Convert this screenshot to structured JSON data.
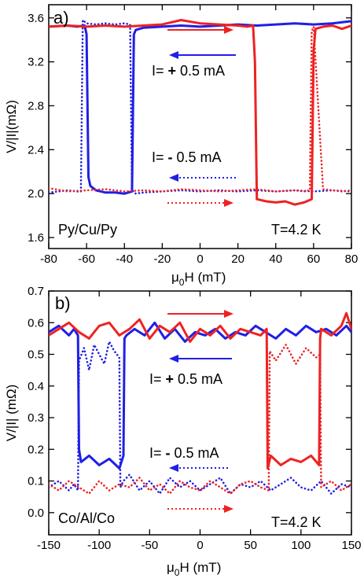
{
  "colors": {
    "blue": "#1f1fe6",
    "red": "#ee2222"
  },
  "chart_data": [
    {
      "type": "line",
      "panel_label": "a)",
      "sample": "Py/Cu/Py",
      "temperature": "T=4.2 K",
      "xlabel_main": "μ",
      "xlabel_sub": "0",
      "xlabel_rest": "H (mT)",
      "ylabel": "V/|I|(mΩ)",
      "xlim": [
        -80,
        80
      ],
      "ylim": [
        1.5,
        3.72
      ],
      "xticks": [
        -80,
        -60,
        -40,
        -20,
        0,
        20,
        40,
        60,
        80
      ],
      "xtick_labels": [
        "-80",
        "-60",
        "-40",
        "-20",
        "0",
        "20",
        "40",
        "60",
        "80"
      ],
      "yticks": [
        1.6,
        2.0,
        2.4,
        2.8,
        3.2,
        3.6
      ],
      "ytick_labels": [
        "1.6",
        "2.0",
        "2.4",
        "2.8",
        "3.2",
        "3.6"
      ],
      "annotation_pos": {
        "prefix": "I= ",
        "sign": "+",
        "rest": " 0.5 mA"
      },
      "annotation_neg": {
        "prefix": "I= ",
        "sign": "-",
        "rest": " 0.5 mA"
      },
      "series": [
        {
          "color": "blue",
          "style": "solid",
          "x": [
            -80,
            -70,
            -65,
            -61,
            -60,
            -59,
            -58,
            -55,
            -50,
            -45,
            -40,
            -36,
            -35,
            -34,
            -30,
            -20,
            -10,
            0,
            10,
            20,
            30,
            40,
            50,
            60,
            70,
            80
          ],
          "y": [
            3.52,
            3.53,
            3.52,
            3.53,
            3.45,
            2.15,
            2.07,
            2.03,
            2.01,
            2.01,
            2.0,
            2.02,
            3.45,
            3.49,
            3.51,
            3.52,
            3.53,
            3.52,
            3.53,
            3.54,
            3.53,
            3.54,
            3.55,
            3.54,
            3.55,
            3.57
          ]
        },
        {
          "color": "blue",
          "style": "dotted",
          "x": [
            -80,
            -70,
            -65,
            -63,
            -62,
            -60,
            -55,
            -50,
            -45,
            -40,
            -37,
            -36,
            -34,
            -30,
            -20,
            -10,
            0,
            10,
            20,
            30,
            40,
            50,
            60,
            70,
            80
          ],
          "y": [
            2.01,
            2.03,
            2.02,
            2.02,
            3.58,
            3.55,
            3.54,
            3.55,
            3.54,
            3.55,
            3.54,
            2.03,
            2.0,
            2.01,
            2.02,
            2.03,
            2.02,
            2.03,
            2.02,
            2.03,
            2.02,
            2.03,
            2.02,
            2.03,
            2.02
          ]
        },
        {
          "color": "red",
          "style": "solid",
          "x": [
            -80,
            -70,
            -60,
            -50,
            -40,
            -30,
            -20,
            -10,
            0,
            10,
            20,
            25,
            28,
            29,
            30,
            35,
            40,
            45,
            50,
            55,
            59,
            60,
            61,
            65,
            70,
            75,
            80
          ],
          "y": [
            3.52,
            3.53,
            3.52,
            3.53,
            3.52,
            3.53,
            3.54,
            3.58,
            3.55,
            3.54,
            3.53,
            3.52,
            3.53,
            3.2,
            1.95,
            1.93,
            1.92,
            1.93,
            1.9,
            1.92,
            1.95,
            3.3,
            3.5,
            3.52,
            3.53,
            3.5,
            3.53
          ]
        },
        {
          "color": "red",
          "style": "dotted",
          "x": [
            -80,
            -70,
            -60,
            -50,
            -40,
            -30,
            -20,
            -10,
            0,
            10,
            20,
            30,
            40,
            50,
            55,
            58,
            59,
            60,
            65,
            70,
            75,
            80
          ],
          "y": [
            2.05,
            2.02,
            2.03,
            2.04,
            2.02,
            2.03,
            2.02,
            2.04,
            2.03,
            2.02,
            2.03,
            2.04,
            2.02,
            2.03,
            2.02,
            2.03,
            3.48,
            3.52,
            2.04,
            2.03,
            2.02,
            2.03
          ]
        }
      ]
    },
    {
      "type": "line",
      "panel_label": "b)",
      "sample": "Co/Al/Co",
      "temperature": "T=4.2 K",
      "xlabel_main": "μ",
      "xlabel_sub": "0",
      "xlabel_rest": "H (mT)",
      "ylabel": "V/|I| (mΩ)",
      "xlim": [
        -150,
        150
      ],
      "ylim": [
        -0.07,
        0.7
      ],
      "xticks": [
        -150,
        -100,
        -50,
        0,
        50,
        100,
        150
      ],
      "xtick_labels": [
        "-150",
        "-100",
        "-50",
        "0",
        "50",
        "100",
        "150"
      ],
      "yticks": [
        0.0,
        0.1,
        0.2,
        0.3,
        0.4,
        0.5,
        0.6,
        0.7
      ],
      "ytick_labels": [
        "0.0",
        "0.1",
        "0.2",
        "0.3",
        "0.4",
        "0.5",
        "0.6",
        "0.7"
      ],
      "annotation_pos": {
        "prefix": "I= ",
        "sign": "+",
        "rest": " 0.5 mA"
      },
      "annotation_neg": {
        "prefix": "I= ",
        "sign": "-",
        "rest": " 0.5 mA"
      },
      "series": [
        {
          "color": "blue",
          "style": "solid",
          "x": [
            -150,
            -140,
            -130,
            -125,
            -121,
            -120,
            -118,
            -110,
            -100,
            -90,
            -80,
            -76,
            -75,
            -73,
            -65,
            -55,
            -45,
            -35,
            -25,
            -15,
            -5,
            5,
            15,
            25,
            35,
            45,
            55,
            65,
            75,
            85,
            95,
            105,
            115,
            125,
            135,
            145,
            150
          ],
          "y": [
            0.57,
            0.59,
            0.56,
            0.58,
            0.56,
            0.2,
            0.16,
            0.18,
            0.15,
            0.17,
            0.14,
            0.18,
            0.55,
            0.56,
            0.58,
            0.56,
            0.6,
            0.55,
            0.58,
            0.54,
            0.57,
            0.56,
            0.58,
            0.55,
            0.57,
            0.56,
            0.59,
            0.57,
            0.55,
            0.58,
            0.56,
            0.59,
            0.57,
            0.58,
            0.56,
            0.59,
            0.57
          ]
        },
        {
          "color": "blue",
          "style": "dotted",
          "x": [
            -150,
            -140,
            -130,
            -125,
            -121,
            -120,
            -115,
            -110,
            -105,
            -100,
            -95,
            -90,
            -85,
            -80,
            -79,
            -76,
            -70,
            -60,
            -50,
            -40,
            -30,
            -20,
            -10,
            0,
            10,
            20,
            30,
            40,
            50,
            60,
            70,
            80,
            90,
            100,
            110,
            120,
            130,
            140,
            150
          ],
          "y": [
            0.08,
            0.1,
            0.07,
            0.09,
            0.07,
            0.48,
            0.52,
            0.45,
            0.53,
            0.5,
            0.47,
            0.54,
            0.51,
            0.49,
            0.08,
            0.1,
            0.12,
            0.07,
            0.1,
            0.06,
            0.11,
            0.08,
            0.1,
            0.07,
            0.09,
            0.11,
            0.06,
            0.09,
            0.08,
            0.1,
            0.07,
            0.09,
            0.11,
            0.08,
            0.07,
            0.1,
            0.06,
            0.09,
            0.08
          ]
        },
        {
          "color": "red",
          "style": "solid",
          "x": [
            -150,
            -140,
            -130,
            -120,
            -110,
            -100,
            -90,
            -80,
            -70,
            -60,
            -50,
            -40,
            -30,
            -20,
            -10,
            0,
            10,
            20,
            30,
            40,
            50,
            60,
            66,
            67,
            70,
            80,
            90,
            100,
            110,
            118,
            119,
            120,
            130,
            140,
            145,
            150
          ],
          "y": [
            0.56,
            0.58,
            0.6,
            0.57,
            0.55,
            0.59,
            0.6,
            0.56,
            0.58,
            0.61,
            0.55,
            0.59,
            0.57,
            0.6,
            0.54,
            0.58,
            0.56,
            0.59,
            0.55,
            0.58,
            0.57,
            0.56,
            0.58,
            0.14,
            0.18,
            0.15,
            0.17,
            0.16,
            0.18,
            0.15,
            0.55,
            0.58,
            0.56,
            0.59,
            0.63,
            0.58
          ]
        },
        {
          "color": "red",
          "style": "dotted",
          "x": [
            -150,
            -140,
            -130,
            -120,
            -110,
            -100,
            -90,
            -80,
            -70,
            -60,
            -50,
            -40,
            -30,
            -20,
            -10,
            0,
            10,
            20,
            30,
            40,
            50,
            60,
            68,
            69,
            75,
            85,
            95,
            105,
            115,
            119,
            120,
            130,
            140,
            150
          ],
          "y": [
            0.09,
            0.07,
            0.1,
            0.08,
            0.06,
            0.1,
            0.07,
            0.09,
            0.08,
            0.11,
            0.07,
            0.09,
            0.06,
            0.1,
            0.08,
            0.07,
            0.1,
            0.08,
            0.06,
            0.09,
            0.1,
            0.08,
            0.07,
            0.51,
            0.48,
            0.53,
            0.47,
            0.52,
            0.49,
            0.5,
            0.08,
            0.1,
            0.07,
            0.09
          ]
        }
      ]
    }
  ]
}
